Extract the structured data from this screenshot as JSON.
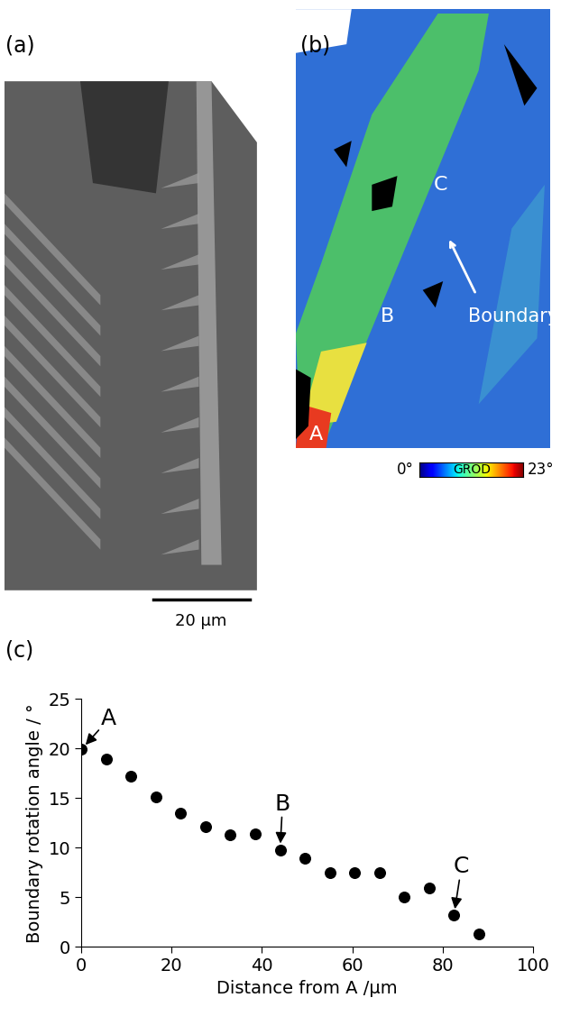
{
  "panel_labels": [
    "(a)",
    "(b)",
    "(c)"
  ],
  "micrograph": {
    "scale_bar": "20 µm"
  },
  "grod_map": {
    "points": [
      "A",
      "B",
      "C"
    ],
    "boundary_label": "Boundary",
    "colorbar": {
      "label": "GROD",
      "range": [
        0,
        23
      ],
      "ticks": [
        {
          "value": 0,
          "label": "0°"
        },
        {
          "value": 23,
          "label": "23°"
        }
      ]
    }
  },
  "chart_data": {
    "type": "scatter",
    "x": [
      0,
      5.5,
      11,
      16.5,
      22,
      27.5,
      33,
      38.5,
      44,
      49.5,
      55,
      60.5,
      66,
      71.5,
      77,
      82.5,
      88
    ],
    "values": [
      19.9,
      18.9,
      17.2,
      15.1,
      13.5,
      12.1,
      11.3,
      11.4,
      9.8,
      8.9,
      7.5,
      7.5,
      7.5,
      5.0,
      5.9,
      3.2,
      1.3
    ],
    "color": "#000000",
    "marker": "circle",
    "x_label": "Distance from A /µm",
    "y_label": "Boundary rotation angle / °",
    "xlim": [
      0,
      100
    ],
    "xticks": [
      0,
      20,
      40,
      60,
      80,
      100
    ],
    "ylim": [
      0,
      25
    ],
    "yticks": [
      0,
      5,
      10,
      15,
      20,
      25
    ],
    "annotations": [
      {
        "text": "A",
        "x": 0,
        "y": 19.9
      },
      {
        "text": "B",
        "x": 44,
        "y": 9.8
      },
      {
        "text": "C",
        "x": 82.5,
        "y": 3.2
      }
    ]
  }
}
